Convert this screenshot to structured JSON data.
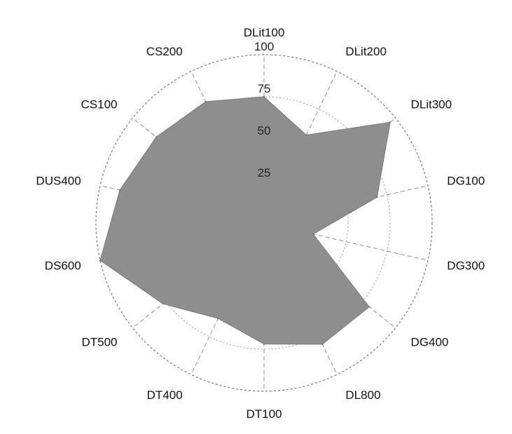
{
  "chart_data": {
    "type": "radar",
    "title": "",
    "axes": [
      "DLit100",
      "DLit200",
      "DLit300",
      "DG100",
      "DG300",
      "DG400",
      "DL800",
      "DT100",
      "DT400",
      "DT500",
      "DS600",
      "DUS400",
      "CS100",
      "CS200"
    ],
    "values": [
      75,
      58,
      96,
      69,
      30,
      80,
      80,
      72,
      63,
      77,
      100,
      88,
      82,
      80
    ],
    "rlim": [
      0,
      100
    ],
    "r_ticks": [
      25,
      50,
      75,
      100
    ],
    "grid": true,
    "legend": "none",
    "colors": {
      "fill": "#8e8e8e",
      "stroke": "#7a7a7a",
      "grid": "#9a9a9a"
    }
  }
}
